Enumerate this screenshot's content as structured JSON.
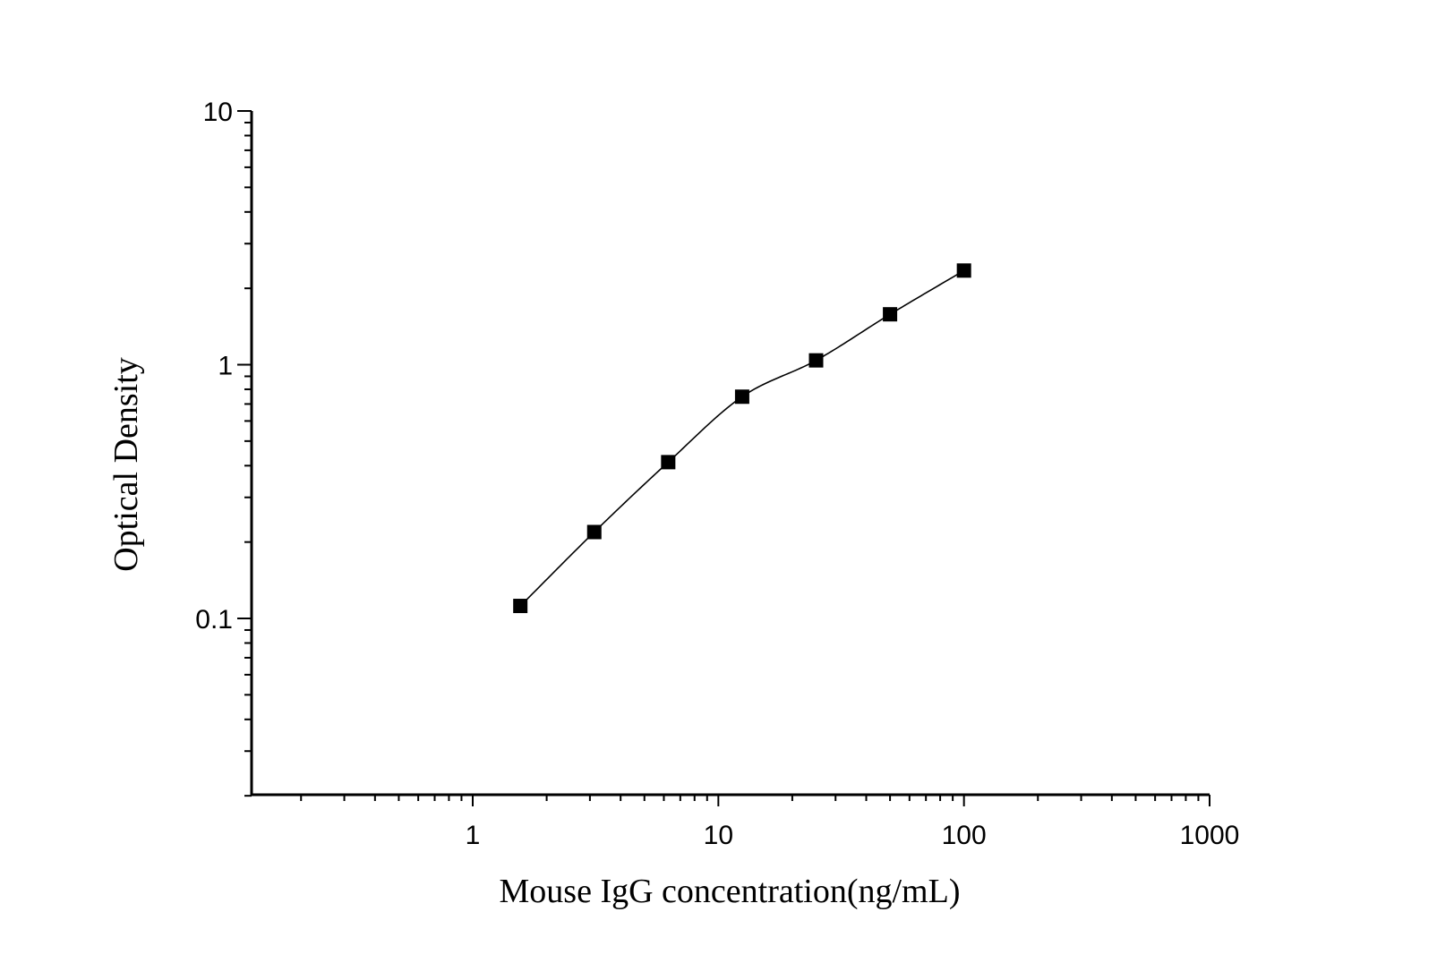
{
  "chart_data": {
    "type": "scatter",
    "title": "",
    "xlabel": "Mouse IgG concentration(ng/mL)",
    "ylabel": "Optical Density",
    "xscale": "log",
    "yscale": "log",
    "xlim": [
      0.125,
      1000
    ],
    "ylim": [
      0.02,
      10
    ],
    "xticks": [
      1,
      10,
      100,
      1000
    ],
    "xtick_labels": [
      "1",
      "10",
      "100",
      "1000"
    ],
    "yticks": [
      0.1,
      1,
      10
    ],
    "ytick_labels": [
      "0.1",
      "1",
      "10"
    ],
    "grid": false,
    "legend": "none",
    "series": [
      {
        "marker": "square",
        "color": "#000000",
        "x": [
          1.5625,
          3.125,
          6.25,
          12.5,
          25,
          50,
          100
        ],
        "y": [
          0.112,
          0.219,
          0.413,
          0.748,
          1.04,
          1.58,
          2.35
        ],
        "fit_line": true
      }
    ]
  }
}
